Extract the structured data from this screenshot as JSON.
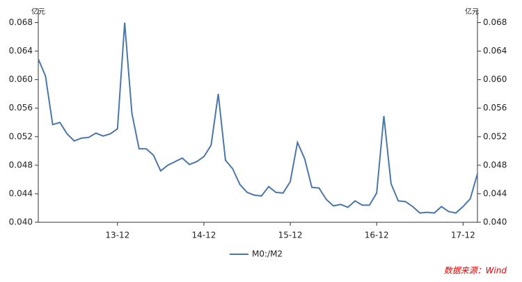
{
  "chart_data": {
    "type": "line",
    "y_unit": "亿元",
    "y2_unit": "亿元",
    "categories": [
      null,
      null,
      null,
      null,
      null,
      null,
      null,
      null,
      null,
      null,
      null,
      "13-12",
      null,
      null,
      null,
      null,
      null,
      null,
      null,
      null,
      null,
      null,
      null,
      "14-12",
      null,
      null,
      null,
      null,
      null,
      null,
      null,
      null,
      null,
      null,
      null,
      "15-12",
      null,
      null,
      null,
      null,
      null,
      null,
      null,
      null,
      null,
      null,
      null,
      "16-12",
      null,
      null,
      null,
      null,
      null,
      null,
      null,
      null,
      null,
      null,
      null,
      "17-12",
      null,
      null
    ],
    "series": [
      {
        "name": "M0:/M2",
        "color": "#4a76a8",
        "values": [
          0.0629,
          0.0605,
          0.0537,
          0.054,
          0.0524,
          0.0514,
          0.0518,
          0.0519,
          0.0525,
          0.0521,
          0.0524,
          0.0531,
          0.068,
          0.0553,
          0.0503,
          0.0503,
          0.0494,
          0.0472,
          0.048,
          0.0485,
          0.049,
          0.0481,
          0.0485,
          0.0492,
          0.0508,
          0.058,
          0.0487,
          0.0475,
          0.0453,
          0.0442,
          0.0438,
          0.0437,
          0.045,
          0.0442,
          0.0441,
          0.0457,
          0.0512,
          0.0489,
          0.0449,
          0.0448,
          0.0432,
          0.0423,
          0.0425,
          0.0421,
          0.043,
          0.0424,
          0.0424,
          0.0441,
          0.0549,
          0.0454,
          0.043,
          0.0429,
          0.0422,
          0.0413,
          0.0414,
          0.0413,
          0.0422,
          0.0415,
          0.0413,
          0.0422,
          0.0433,
          0.0468
        ]
      }
    ],
    "ylim": [
      0.04,
      0.07
    ],
    "yticks": [
      {
        "value": 0.04,
        "label": "0.040"
      },
      {
        "value": 0.044,
        "label": "0.044"
      },
      {
        "value": 0.048,
        "label": "0.048"
      },
      {
        "value": 0.052,
        "label": "0.052"
      },
      {
        "value": 0.056,
        "label": "0.056"
      },
      {
        "value": 0.06,
        "label": "0.060"
      },
      {
        "value": 0.064,
        "label": "0.064"
      },
      {
        "value": 0.068,
        "label": "0.068"
      }
    ],
    "y2lim": [
      0.04,
      0.07
    ],
    "y2ticks": [
      {
        "value": 0.04,
        "label": "0.040"
      },
      {
        "value": 0.044,
        "label": "0.044"
      },
      {
        "value": 0.048,
        "label": "0.048"
      },
      {
        "value": 0.052,
        "label": "0.052"
      },
      {
        "value": 0.056,
        "label": "0.056"
      },
      {
        "value": 0.06,
        "label": "0.060"
      },
      {
        "value": 0.064,
        "label": "0.064"
      },
      {
        "value": 0.068,
        "label": "0.068"
      }
    ],
    "legend": "bottom",
    "source": "数据来源：Wind"
  }
}
